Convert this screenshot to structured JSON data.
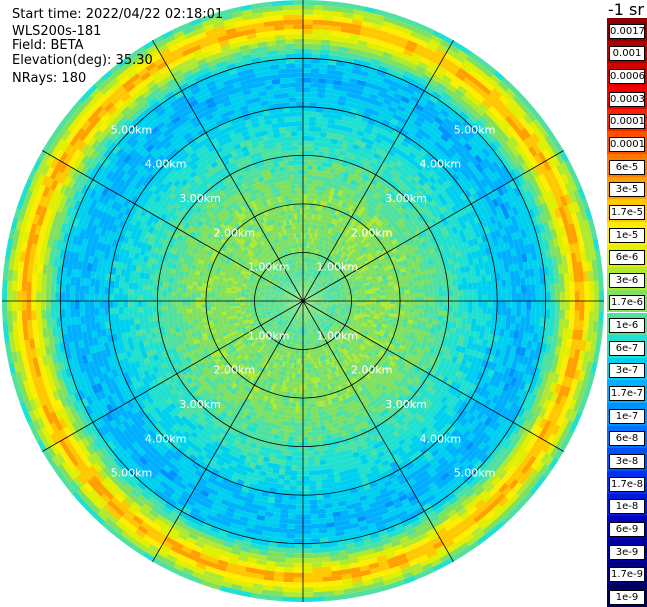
{
  "header": {
    "start_time": "Start time: 2022/04/22 02:18:01",
    "instrument": "WLS200s-181",
    "field": "Field: BETA",
    "elevation": "Elevation(deg): 35.30",
    "nrays": "NRays: 180"
  },
  "colorbar": {
    "unit_label": "-1 sr",
    "levels": [
      {
        "label": "0.0017",
        "color": "#8b0000"
      },
      {
        "label": "0.001",
        "color": "#b00000"
      },
      {
        "label": "0.0006",
        "color": "#d40000"
      },
      {
        "label": "0.0003",
        "color": "#f00000"
      },
      {
        "label": "0.00017",
        "color": "#ff2000"
      },
      {
        "label": "0.0001",
        "color": "#ff5000"
      },
      {
        "label": "6e-5",
        "color": "#ff7800"
      },
      {
        "label": "3e-5",
        "color": "#ffa000"
      },
      {
        "label": "1.7e-5",
        "color": "#ffc800"
      },
      {
        "label": "1e-5",
        "color": "#ffee00"
      },
      {
        "label": "6e-6",
        "color": "#e0f000"
      },
      {
        "label": "3e-6",
        "color": "#b0ea30"
      },
      {
        "label": "1.7e-6",
        "color": "#80e060"
      },
      {
        "label": "1e-6",
        "color": "#50e0a0"
      },
      {
        "label": "6e-7",
        "color": "#20e0d0"
      },
      {
        "label": "3e-7",
        "color": "#00d0f0"
      },
      {
        "label": "1.7e-7",
        "color": "#00b0ff"
      },
      {
        "label": "1e-7",
        "color": "#0090ff"
      },
      {
        "label": "6e-8",
        "color": "#0070ff"
      },
      {
        "label": "3e-8",
        "color": "#0050ff"
      },
      {
        "label": "1.7e-8",
        "color": "#0030f0"
      },
      {
        "label": "1e-8",
        "color": "#0018d8"
      },
      {
        "label": "6e-9",
        "color": "#0000c0"
      },
      {
        "label": "3e-9",
        "color": "#0000a0"
      },
      {
        "label": "1.7e-9",
        "color": "#000080"
      },
      {
        "label": "1e-9",
        "color": "#000060"
      }
    ]
  },
  "chart_data": {
    "type": "heatmap",
    "projection": "polar",
    "title": "",
    "range_unit": "km",
    "ring_labels": [
      "1.00km",
      "2.00km",
      "3.00km",
      "4.00km",
      "5.00km"
    ],
    "rings_km": [
      1,
      2,
      3,
      4,
      5
    ],
    "max_range_km": 6.2,
    "spoke_step_deg": 30,
    "nrays": 180,
    "radial_profile": [
      {
        "r_km": 0.0,
        "level": "1.7e-6"
      },
      {
        "r_km": 0.6,
        "level": "1e-6"
      },
      {
        "r_km": 1.2,
        "level": "1.7e-6"
      },
      {
        "r_km": 2.2,
        "level": "1.7e-6"
      },
      {
        "r_km": 2.8,
        "level": "1e-6"
      },
      {
        "r_km": 3.4,
        "level": "6e-7"
      },
      {
        "r_km": 4.0,
        "level": "3e-7"
      },
      {
        "r_km": 4.6,
        "level": "1.7e-7"
      },
      {
        "r_km": 5.0,
        "level": "3e-7"
      },
      {
        "r_km": 5.3,
        "level": "1.7e-6"
      },
      {
        "r_km": 5.55,
        "level": "1e-5"
      },
      {
        "r_km": 5.7,
        "level": "3e-5"
      },
      {
        "r_km": 5.85,
        "level": "1e-5"
      },
      {
        "r_km": 6.0,
        "level": "3e-6"
      },
      {
        "r_km": 6.2,
        "level": "6e-7"
      }
    ]
  }
}
